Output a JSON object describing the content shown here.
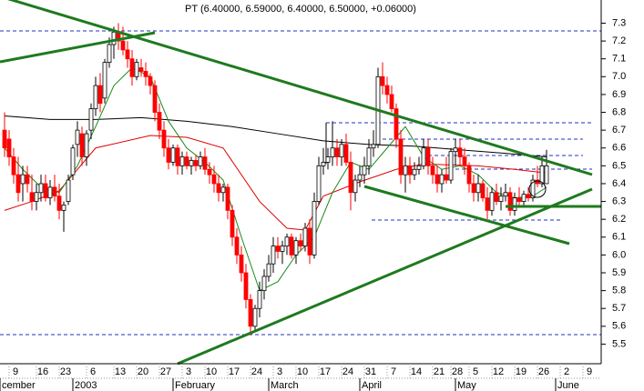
{
  "chart_data": {
    "type": "candlestick",
    "title": "PT (6.40000, 6.59000, 6.40000, 6.50000, +0.06000)",
    "up_color": "#ffffff",
    "down_color": "#ff0000",
    "ylim": [
      5.39,
      7.43
    ],
    "yticks": [
      5.5,
      5.6,
      5.7,
      5.8,
      5.9,
      {
        "value": 6,
        "label": "6.0"
      },
      6.1,
      6.2,
      6.3,
      6.4,
      6.5,
      6.6,
      6.7,
      6.8,
      6.9,
      {
        "value": 7,
        "label": "7.0"
      },
      7.1,
      7.2,
      7.3
    ],
    "xlim": [
      -1,
      131
    ],
    "xticks": [
      {
        "value": 1,
        "label": "9"
      },
      {
        "value": 7,
        "label": "16"
      },
      {
        "value": 12,
        "label": "23"
      },
      {
        "value": 18,
        "label": "6"
      },
      {
        "value": 24,
        "label": "13"
      },
      {
        "value": 29,
        "label": "20"
      },
      {
        "value": 34,
        "label": "27"
      },
      {
        "value": 39,
        "label": "3"
      },
      {
        "value": 44,
        "label": "10"
      },
      {
        "value": 49,
        "label": "17"
      },
      {
        "value": 54,
        "label": "24"
      },
      {
        "value": 59,
        "label": "3"
      },
      {
        "value": 64,
        "label": "10"
      },
      {
        "value": 69,
        "label": "17"
      },
      {
        "value": 74,
        "label": "24"
      },
      {
        "value": 79,
        "label": "31"
      },
      {
        "value": 84,
        "label": "7"
      },
      {
        "value": 89,
        "label": "14"
      },
      {
        "value": 94,
        "label": "21"
      },
      {
        "value": 98,
        "label": "28"
      },
      {
        "value": 102,
        "label": "5"
      },
      {
        "value": 107,
        "label": "12"
      },
      {
        "value": 112,
        "label": "19"
      },
      {
        "value": 117,
        "label": "26"
      },
      {
        "value": 122,
        "label": "2"
      },
      {
        "value": 127,
        "label": "9"
      }
    ],
    "x_months": [
      {
        "value": -1,
        "label": "cember"
      },
      {
        "value": 15,
        "label": "2003"
      },
      {
        "value": 37,
        "label": "February"
      },
      {
        "value": 58,
        "label": "March"
      },
      {
        "value": 78,
        "label": "April"
      },
      {
        "value": 99,
        "label": "May"
      },
      {
        "value": 121,
        "label": "June"
      }
    ],
    "ohlc": [
      [
        6.7,
        6.8,
        6.55,
        6.6
      ],
      [
        6.65,
        6.7,
        6.5,
        6.55
      ],
      [
        6.55,
        6.6,
        6.4,
        6.45
      ],
      [
        6.45,
        6.55,
        6.3,
        6.35
      ],
      [
        6.4,
        6.5,
        6.3,
        6.45
      ],
      [
        6.45,
        6.5,
        6.35,
        6.4
      ],
      [
        6.35,
        6.45,
        6.25,
        6.3
      ],
      [
        6.3,
        6.4,
        6.25,
        6.35
      ],
      [
        6.35,
        6.45,
        6.3,
        6.4
      ],
      [
        6.4,
        6.45,
        6.3,
        6.32
      ],
      [
        6.32,
        6.42,
        6.28,
        6.38
      ],
      [
        6.38,
        6.45,
        6.3,
        6.33
      ],
      [
        6.33,
        6.4,
        6.2,
        6.25
      ],
      [
        6.25,
        6.3,
        6.13,
        6.28
      ],
      [
        6.3,
        6.45,
        6.28,
        6.42
      ],
      [
        6.45,
        6.62,
        6.42,
        6.6
      ],
      [
        6.62,
        6.75,
        6.55,
        6.7
      ],
      [
        6.68,
        6.72,
        6.5,
        6.55
      ],
      [
        6.55,
        6.7,
        6.5,
        6.68
      ],
      [
        6.7,
        6.85,
        6.65,
        6.82
      ],
      [
        6.82,
        7.0,
        6.78,
        6.95
      ],
      [
        6.95,
        7.02,
        6.8,
        6.85
      ],
      [
        6.88,
        7.1,
        6.85,
        7.08
      ],
      [
        7.08,
        7.22,
        7.05,
        7.18
      ],
      [
        7.18,
        7.28,
        7.1,
        7.25
      ],
      [
        7.25,
        7.3,
        7.15,
        7.2
      ],
      [
        7.2,
        7.28,
        7.12,
        7.15
      ],
      [
        7.15,
        7.2,
        7.05,
        7.1
      ],
      [
        7.1,
        7.15,
        6.95,
        7.0
      ],
      [
        7.0,
        7.1,
        6.98,
        7.08
      ],
      [
        7.05,
        7.1,
        7.0,
        7.03
      ],
      [
        7.03,
        7.08,
        6.95,
        7.0
      ],
      [
        7.0,
        7.02,
        6.9,
        6.95
      ],
      [
        6.95,
        6.98,
        6.75,
        6.8
      ],
      [
        6.8,
        6.85,
        6.65,
        6.7
      ],
      [
        6.7,
        6.75,
        6.55,
        6.6
      ],
      [
        6.6,
        6.65,
        6.48,
        6.52
      ],
      [
        6.52,
        6.62,
        6.5,
        6.6
      ],
      [
        6.6,
        6.62,
        6.45,
        6.5
      ],
      [
        6.5,
        6.58,
        6.45,
        6.55
      ],
      [
        6.55,
        6.58,
        6.48,
        6.5
      ],
      [
        6.5,
        6.55,
        6.45,
        6.53
      ],
      [
        6.53,
        6.56,
        6.47,
        6.5
      ],
      [
        6.5,
        6.58,
        6.48,
        6.55
      ],
      [
        6.55,
        6.6,
        6.45,
        6.48
      ],
      [
        6.48,
        6.52,
        6.4,
        6.45
      ],
      [
        6.45,
        6.5,
        6.35,
        6.4
      ],
      [
        6.4,
        6.45,
        6.3,
        6.35
      ],
      [
        6.35,
        6.4,
        6.3,
        6.38
      ],
      [
        6.38,
        6.4,
        6.2,
        6.25
      ],
      [
        6.25,
        6.28,
        6.05,
        6.1
      ],
      [
        6.1,
        6.15,
        5.95,
        6.0
      ],
      [
        6.0,
        6.05,
        5.85,
        5.9
      ],
      [
        5.9,
        5.95,
        5.7,
        5.75
      ],
      [
        5.75,
        5.78,
        5.55,
        5.6
      ],
      [
        5.6,
        5.72,
        5.58,
        5.7
      ],
      [
        5.7,
        5.85,
        5.65,
        5.8
      ],
      [
        5.8,
        5.92,
        5.75,
        5.88
      ],
      [
        5.88,
        6.0,
        5.85,
        5.95
      ],
      [
        5.95,
        6.1,
        5.9,
        6.05
      ],
      [
        6.05,
        6.1,
        5.98,
        6.02
      ],
      [
        6.02,
        6.08,
        5.95,
        6.05
      ],
      [
        6.05,
        6.12,
        6.0,
        6.1
      ],
      [
        6.1,
        6.12,
        5.98,
        6.0
      ],
      [
        6.0,
        6.1,
        5.95,
        6.08
      ],
      [
        6.08,
        6.12,
        6.02,
        6.05
      ],
      [
        6.05,
        6.18,
        6.02,
        6.15
      ],
      [
        6.15,
        6.2,
        5.95,
        6.0
      ],
      [
        6.0,
        6.35,
        5.98,
        6.3
      ],
      [
        6.3,
        6.55,
        6.28,
        6.5
      ],
      [
        6.5,
        6.6,
        6.45,
        6.52
      ],
      [
        6.52,
        6.6,
        6.48,
        6.55
      ],
      [
        6.55,
        6.75,
        6.5,
        6.6
      ],
      [
        6.6,
        6.65,
        6.5,
        6.55
      ],
      [
        6.55,
        6.65,
        6.5,
        6.62
      ],
      [
        6.62,
        6.68,
        6.5,
        6.52
      ],
      [
        6.52,
        6.58,
        6.25,
        6.35
      ],
      [
        6.35,
        6.45,
        6.3,
        6.42
      ],
      [
        6.42,
        6.5,
        6.38,
        6.45
      ],
      [
        6.45,
        6.55,
        6.4,
        6.5
      ],
      [
        6.5,
        6.65,
        6.45,
        6.6
      ],
      [
        6.6,
        6.7,
        6.55,
        6.62
      ],
      [
        6.62,
        7.05,
        6.6,
        7.0
      ],
      [
        7.0,
        7.08,
        6.9,
        6.95
      ],
      [
        6.95,
        7.0,
        6.85,
        6.9
      ],
      [
        6.9,
        6.95,
        6.8,
        6.82
      ],
      [
        6.82,
        6.85,
        6.6,
        6.65
      ],
      [
        6.65,
        6.7,
        6.4,
        6.45
      ],
      [
        6.45,
        6.55,
        6.35,
        6.5
      ],
      [
        6.5,
        6.55,
        6.4,
        6.45
      ],
      [
        6.45,
        6.52,
        6.42,
        6.48
      ],
      [
        6.48,
        6.55,
        6.45,
        6.5
      ],
      [
        6.5,
        6.65,
        6.48,
        6.6
      ],
      [
        6.6,
        6.65,
        6.45,
        6.5
      ],
      [
        6.5,
        6.55,
        6.4,
        6.45
      ],
      [
        6.45,
        6.5,
        6.35,
        6.4
      ],
      [
        6.4,
        6.48,
        6.35,
        6.45
      ],
      [
        6.45,
        6.55,
        6.4,
        6.42
      ],
      [
        6.42,
        6.6,
        6.4,
        6.58
      ],
      [
        6.58,
        6.65,
        6.5,
        6.6
      ],
      [
        6.6,
        6.65,
        6.5,
        6.55
      ],
      [
        6.55,
        6.6,
        6.45,
        6.5
      ],
      [
        6.5,
        6.52,
        6.35,
        6.4
      ],
      [
        6.4,
        6.45,
        6.3,
        6.35
      ],
      [
        6.35,
        6.45,
        6.3,
        6.4
      ],
      [
        6.4,
        6.42,
        6.3,
        6.32
      ],
      [
        6.32,
        6.38,
        6.2,
        6.25
      ],
      [
        6.25,
        6.38,
        6.22,
        6.35
      ],
      [
        6.35,
        6.4,
        6.28,
        6.3
      ],
      [
        6.3,
        6.38,
        6.25,
        6.33
      ],
      [
        6.33,
        6.4,
        6.3,
        6.35
      ],
      [
        6.35,
        6.38,
        6.22,
        6.25
      ],
      [
        6.25,
        6.35,
        6.22,
        6.32
      ],
      [
        6.32,
        6.38,
        6.28,
        6.3
      ],
      [
        6.3,
        6.36,
        6.28,
        6.34
      ],
      [
        6.34,
        6.38,
        6.3,
        6.32
      ],
      [
        6.32,
        6.45,
        6.3,
        6.42
      ],
      [
        6.42,
        6.5,
        6.38,
        6.4
      ],
      [
        6.4,
        6.55,
        6.38,
        6.5
      ],
      [
        6.4,
        6.59,
        6.4,
        6.5
      ]
    ],
    "moving_averages": [
      {
        "color": "#000000",
        "x": [
          0,
          10,
          20,
          30,
          40,
          50,
          60,
          70,
          80,
          90,
          100,
          110,
          119
        ],
        "values": [
          6.78,
          6.76,
          6.76,
          6.77,
          6.75,
          6.72,
          6.68,
          6.64,
          6.62,
          6.61,
          6.59,
          6.57,
          6.55
        ]
      },
      {
        "color": "#e00000",
        "x": [
          0,
          6,
          12,
          20,
          32,
          40,
          48,
          56,
          62,
          66,
          70,
          78,
          86,
          92,
          104,
          112,
          119
        ],
        "values": [
          6.25,
          6.3,
          6.36,
          6.6,
          6.67,
          6.66,
          6.6,
          6.3,
          6.15,
          6.14,
          6.33,
          6.41,
          6.48,
          6.51,
          6.5,
          6.48,
          6.46
        ]
      },
      {
        "color": "#1a8a1a",
        "x": [
          0,
          4,
          8,
          12,
          16,
          20,
          24,
          28,
          32,
          36,
          40,
          44,
          48,
          52,
          56,
          60,
          64,
          68,
          72,
          76,
          80,
          84,
          88,
          92,
          96,
          100,
          104,
          108,
          112,
          116,
          119
        ],
        "values": [
          6.6,
          6.48,
          6.38,
          6.35,
          6.5,
          6.72,
          6.95,
          7.05,
          7.0,
          6.75,
          6.6,
          6.52,
          6.42,
          6.1,
          5.8,
          5.85,
          6.0,
          6.1,
          6.35,
          6.52,
          6.48,
          6.6,
          6.72,
          6.55,
          6.48,
          6.5,
          6.45,
          6.35,
          6.32,
          6.33,
          6.38
        ]
      }
    ]
  }
}
